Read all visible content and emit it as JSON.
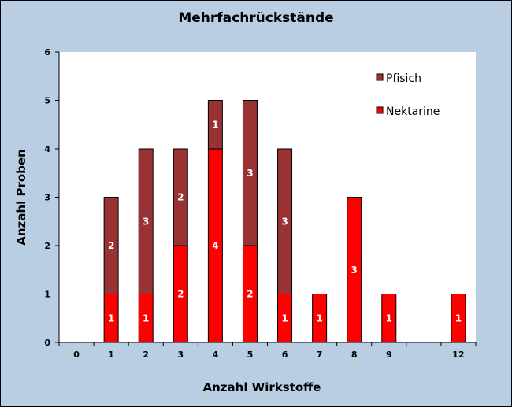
{
  "chart_data": {
    "type": "bar",
    "stacked": true,
    "title": "Mehrfachrückstände",
    "xlabel": "Anzahl  Wirkstoffe",
    "ylabel": "Anzahl  Proben",
    "categories": [
      "0",
      "1",
      "2",
      "3",
      "4",
      "5",
      "6",
      "7",
      "8",
      "9",
      "",
      "12"
    ],
    "ylim": [
      0,
      6
    ],
    "yticks": [
      "0",
      "1",
      "2",
      "3",
      "4",
      "5",
      "6"
    ],
    "grid": false,
    "legend_position": "top-right",
    "series": [
      {
        "name": "Nektarine",
        "color": "#ff0000",
        "values": [
          0,
          1,
          1,
          2,
          4,
          2,
          1,
          1,
          3,
          1,
          0,
          1
        ],
        "labels": [
          "",
          "1",
          "1",
          "2",
          "4",
          "2",
          "1",
          "1",
          "3",
          "1",
          "",
          "1"
        ]
      },
      {
        "name": "Pfisich",
        "color": "#993333",
        "values": [
          0,
          2,
          3,
          2,
          1,
          3,
          3,
          0,
          0,
          0,
          0,
          0
        ],
        "labels": [
          "",
          "2",
          "3",
          "2",
          "1",
          "3",
          "3",
          "",
          "",
          "",
          "",
          ""
        ]
      }
    ],
    "legend_order": [
      "Pfisich",
      "Nektarine"
    ],
    "plot_background": "#ffffff",
    "chart_background": "#b9cde3"
  }
}
